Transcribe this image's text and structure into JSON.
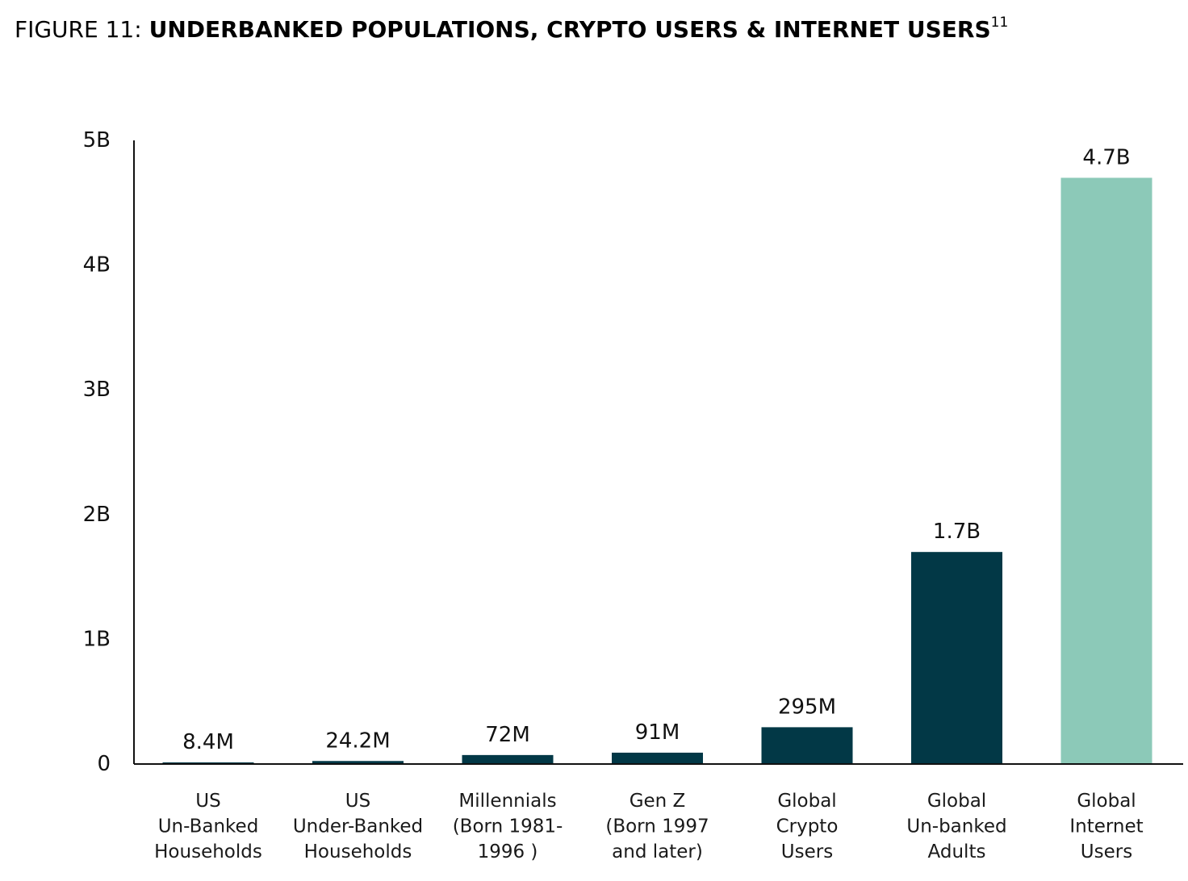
{
  "figure": {
    "prefix": "FIGURE 11: ",
    "title": "UNDERBANKED POPULATIONS, CRYPTO USERS & INTERNET USERS",
    "footnote": "11"
  },
  "chart_data": {
    "type": "bar",
    "title": "UNDERBANKED POPULATIONS, CRYPTO USERS & INTERNET USERS",
    "xlabel": "",
    "ylabel": "",
    "ylim": [
      0,
      5000000000
    ],
    "yticks": [
      {
        "value": 0,
        "label": "0"
      },
      {
        "value": 1000000000,
        "label": "1B"
      },
      {
        "value": 2000000000,
        "label": "2B"
      },
      {
        "value": 3000000000,
        "label": "3B"
      },
      {
        "value": 4000000000,
        "label": "4B"
      },
      {
        "value": 5000000000,
        "label": "5B"
      }
    ],
    "grid": false,
    "categories": [
      [
        "US",
        "Un-Banked",
        "Households"
      ],
      [
        "US",
        "Under-Banked",
        "Households"
      ],
      [
        "Millennials",
        "(Born 1981-",
        "1996 )"
      ],
      [
        "Gen Z",
        "(Born 1997",
        "and later)"
      ],
      [
        "Global",
        "Crypto",
        "Users"
      ],
      [
        "Global",
        "Un-banked",
        "Adults"
      ],
      [
        "Global",
        "Internet",
        "Users"
      ]
    ],
    "values": [
      8400000,
      24200000,
      72000000,
      91000000,
      295000000,
      1700000000,
      4700000000
    ],
    "value_labels": [
      "8.4M",
      "24.2M",
      "72M",
      "91M",
      "295M",
      "1.7B",
      "4.7B"
    ],
    "colors": [
      "#023846",
      "#023846",
      "#023846",
      "#023846",
      "#023846",
      "#023846",
      "#8cc9b8"
    ],
    "axis_color": "#111111"
  }
}
